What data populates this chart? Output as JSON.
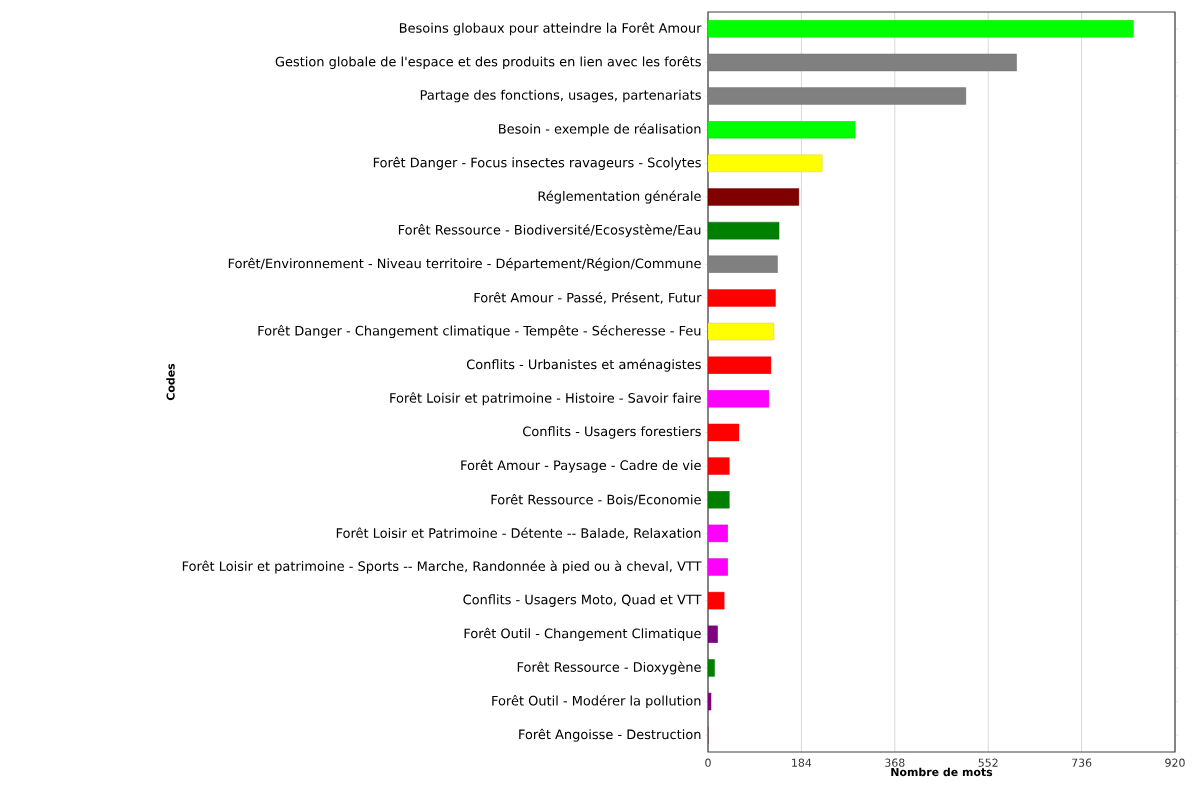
{
  "chart_data": {
    "type": "bar",
    "orientation": "horizontal",
    "xlabel": "Nombre de mots",
    "ylabel": "Codes",
    "categories": [
      "Besoins globaux pour atteindre la Forêt Amour",
      "Gestion globale de l'espace et des produits en lien avec les forêts",
      "Partage des fonctions, usages,  partenariats",
      "Besoin - exemple de réalisation",
      "Forêt Danger - Focus insectes ravageurs - Scolytes",
      "Réglementation générale",
      "Forêt Ressource - Biodiversité/Ecosystème/Eau",
      "Forêt/Environnement - Niveau territoire - Département/Région/Commune",
      "Forêt Amour - Passé, Présent, Futur",
      "Forêt Danger - Changement  climatique - Tempête - Sécheresse - Feu",
      "Conflits - Urbanistes et aménagistes",
      "Forêt Loisir et patrimoine - Histoire - Savoir faire",
      "Conflits - Usagers forestiers",
      "Forêt Amour - Paysage - Cadre de vie",
      "Forêt Ressource - Bois/Economie",
      "Forêt Loisir et Patrimoine - Détente -- Balade, Relaxation",
      "Forêt Loisir et patrimoine - Sports -- Marche,  Randonnée à pied ou à cheval, VTT",
      "Conflits - Usagers Moto, Quad et VTT",
      "Forêt Outil - Changement Climatique",
      "Forêt Ressource - Dioxygène",
      "Forêt Outil - Modérer la pollution",
      "Forêt Angoisse - Destruction"
    ],
    "values": [
      838,
      608,
      508,
      290,
      225,
      179,
      140,
      137,
      133,
      130,
      124,
      120,
      61,
      42,
      42,
      39,
      39,
      32,
      19,
      13,
      6,
      0
    ],
    "colors": [
      "#00ff00",
      "#808080",
      "#808080",
      "#00ff00",
      "#ffff00",
      "#800000",
      "#008000",
      "#808080",
      "#ff0000",
      "#ffff00",
      "#ff0000",
      "#ff00ff",
      "#ff0000",
      "#ff0000",
      "#008000",
      "#ff00ff",
      "#ff00ff",
      "#ff0000",
      "#800080",
      "#008000",
      "#800080",
      "#800080"
    ],
    "xlim": [
      0,
      920
    ],
    "xticks": [
      0,
      184,
      368,
      552,
      736,
      920
    ],
    "grid": "x"
  }
}
